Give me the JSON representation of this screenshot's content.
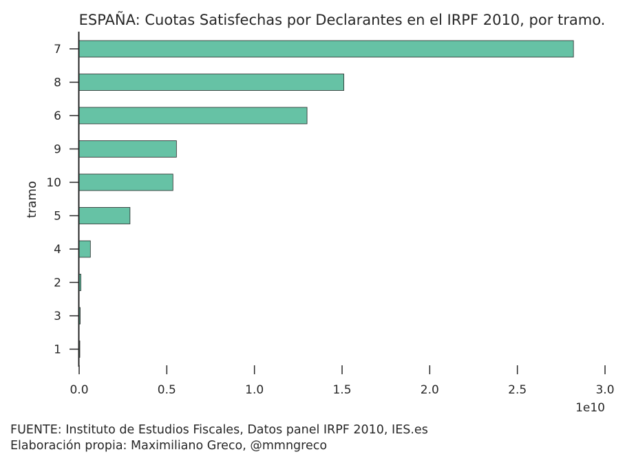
{
  "chart_data": {
    "type": "bar",
    "orientation": "horizontal",
    "title": "ESPAÑA: Cuotas Satisfechas por Declarantes en el IRPF 2010, por tramo.",
    "ylabel": "tramo",
    "xlabel": "",
    "x_scale_label": "1e10",
    "xlim": [
      0,
      3.0
    ],
    "x_ticks": [
      "0.0",
      "0.5",
      "1.0",
      "1.5",
      "2.0",
      "2.5",
      "3.0"
    ],
    "categories": [
      "7",
      "8",
      "6",
      "9",
      "10",
      "5",
      "4",
      "2",
      "3",
      "1"
    ],
    "values": [
      28200000000,
      15100000000,
      13000000000,
      5550000000,
      5350000000,
      2900000000,
      640000000,
      100000000,
      60000000,
      20000000
    ],
    "bar_color": "#66c2a5",
    "grid": false
  },
  "footer": {
    "source": "FUENTE: Instituto de Estudios Fiscales, Datos panel IRPF 2010, IES.es",
    "credit": "Elaboración propia: Maximiliano Greco, @mmngreco"
  }
}
